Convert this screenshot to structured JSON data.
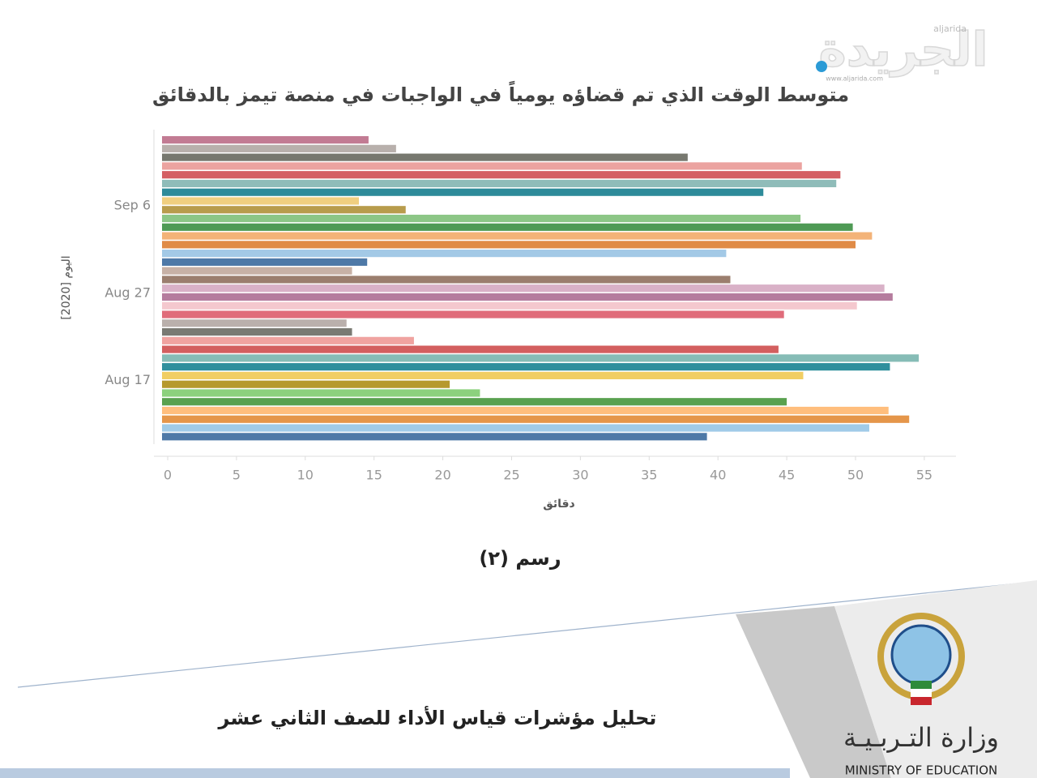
{
  "chart_data": {
    "type": "bar",
    "orientation": "horizontal",
    "title": "متوسط الوقت الذي تم قضاؤه  يومياً  في الواجبات  في منصة تيمز بالدقائق",
    "x_label": "دقائق",
    "y_label": "اليوم [2020]",
    "categories": [
      null,
      null,
      null,
      null,
      null,
      null,
      null,
      "Sep 6",
      null,
      null,
      null,
      null,
      null,
      null,
      null,
      null,
      null,
      "Aug 27",
      null,
      null,
      null,
      null,
      null,
      null,
      null,
      null,
      null,
      "Aug 17",
      null,
      null,
      null,
      null,
      null,
      null,
      null
    ],
    "values": [
      14.6,
      16.6,
      37.8,
      46.1,
      48.9,
      48.6,
      43.3,
      13.9,
      17.3,
      46.0,
      49.8,
      51.2,
      50.0,
      40.6,
      14.5,
      13.4,
      40.9,
      52.1,
      52.7,
      50.1,
      44.8,
      13.0,
      13.4,
      17.9,
      44.4,
      54.6,
      52.5,
      46.2,
      20.5,
      22.7,
      45.0,
      52.4,
      53.9,
      51.0,
      39.2
    ],
    "colors": [
      "#c27b93",
      "#b8b0ac",
      "#77786f",
      "#eba3a0",
      "#d45f63",
      "#8fbcb9",
      "#2e8b9a",
      "#f0cf80",
      "#b89c4c",
      "#8cc686",
      "#4f9a55",
      "#f3b378",
      "#e08b46",
      "#a3c9e6",
      "#4e79a7",
      "#c7b1a6",
      "#9b7e6e",
      "#d9b1c7",
      "#b57c9e",
      "#f4c8ce",
      "#e06c7a",
      "#bab0ac",
      "#7a7a73",
      "#f0a3a0",
      "#d35f5f",
      "#86bcb6",
      "#2f8f9d",
      "#f1ce63",
      "#b6992d",
      "#8cd17d",
      "#59a14f",
      "#ffbe7d",
      "#e5964a",
      "#a0cbe8",
      "#4e79a7"
    ],
    "xlim": [
      0,
      57.3
    ],
    "xticks": [
      0,
      5,
      10,
      15,
      20,
      25,
      30,
      35,
      40,
      45,
      50,
      55
    ]
  },
  "page": {
    "caption": "رسم (٢)",
    "footer_title": "تحليل مؤشرات قياس الأداء للصف الثاني عشر",
    "ministry_ar": "وزارة التـربـيـة",
    "ministry_en": "MINISTRY OF EDUCATION",
    "watermark": "الجريدة",
    "watermark_latin": "aljarida",
    "watermark_url": "www.aljarida.com"
  }
}
